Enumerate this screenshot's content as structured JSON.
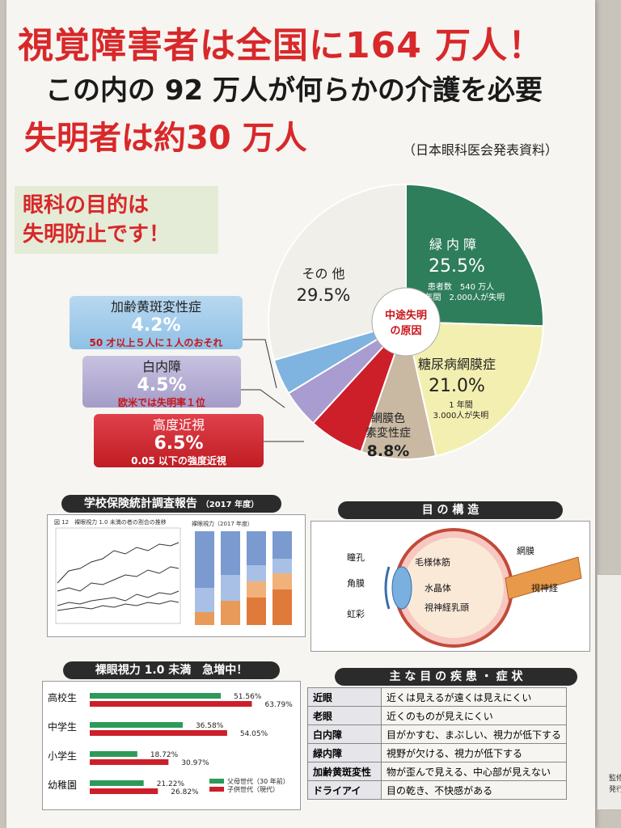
{
  "header": {
    "line1": "視覚障害者は全国に164 万人！",
    "line2": "この内の 92 万人が何らかの介護を必要",
    "line3": "失明者は約30 万人",
    "source": "（日本眼科医会発表資料）"
  },
  "purpose": {
    "line1": "眼科の目的は",
    "line2": "失明防止です！"
  },
  "pie_center": {
    "line1": "中途失明",
    "line2": "の原因"
  },
  "pie_labels": {
    "glaucoma": {
      "name": "緑 内 障",
      "value": "25.5%",
      "note1": "患者数　540 万人",
      "note2": "1 年間　2.000人が失明"
    },
    "diabetic": {
      "name": "糖尿病網膜症",
      "value": "21.0%",
      "note1": "1 年間",
      "note2": "3.000人が失明"
    },
    "retinitis": {
      "name1": "網膜色",
      "name2": "素変性症",
      "value": "8.8%"
    },
    "other": {
      "name": "その 他",
      "value": "29.5%"
    }
  },
  "callouts": {
    "amd": {
      "name": "加齢黄斑変性症",
      "value": "4.2%",
      "note": "50 才以上５人に１人のおそれ"
    },
    "cataract": {
      "name": "白内障",
      "value": "4.5%",
      "note": "欧米では失明率１位"
    },
    "myopia": {
      "name": "高度近視",
      "value": "6.5%",
      "note": "0.05 以下の強度近視"
    }
  },
  "chart_data": [
    {
      "type": "pie",
      "categories": [
        "緑内障",
        "糖尿病網膜症",
        "網膜色素変性症",
        "高度近視",
        "白内障",
        "加齢黄斑変性症",
        "その他"
      ],
      "values": [
        25.5,
        21.0,
        8.8,
        6.5,
        4.5,
        4.2,
        29.5
      ],
      "colors": [
        "#2e7d5b",
        "#f3efb0",
        "#c9b8a2",
        "#cc1f2a",
        "#a89cd0",
        "#7fb3e0",
        "#f0efea"
      ]
    },
    {
      "type": "bar",
      "title": "裸眼視力 1.0 未満　急増中！",
      "categories": [
        "高校生",
        "中学生",
        "小学生",
        "幼稚園"
      ],
      "series": [
        {
          "name": "父母世代（30 年前）",
          "values": [
            51.56,
            36.58,
            18.72,
            21.22
          ],
          "color": "#2e9a5a"
        },
        {
          "name": "子供世代（現代）",
          "values": [
            63.79,
            54.05,
            30.97,
            26.82
          ],
          "color": "#cc1f2a"
        }
      ],
      "value_labels": [
        [
          "51.56%",
          "36.58%",
          "18.72%",
          "21.22%"
        ],
        [
          "63.79%",
          "54.05%",
          "30.97%",
          "26.82%"
        ]
      ]
    }
  ],
  "survey": {
    "heading": "学校保険統計調査報告",
    "year": "（2017 年度）",
    "fig_title": "図 12　裸眼視力 1.0 未満の者の割合の推移",
    "stack_title": "裸眼視力（2017 年度）"
  },
  "eye": {
    "heading": "目 の 構 造",
    "labels": [
      "瞳孔",
      "角膜",
      "虹彩",
      "毛様体筋",
      "水晶体",
      "視神経乳頭",
      "網膜",
      "視神経"
    ]
  },
  "diseases": {
    "heading": "主 な 目 の 疾 患 ・ 症 状",
    "rows": [
      {
        "name": "近眼",
        "desc": "近くは見えるが遠くは見えにくい"
      },
      {
        "name": "老眼",
        "desc": "近くのものが見えにくい"
      },
      {
        "name": "白内障",
        "desc": "目がかすむ、まぶしい、視力が低下する"
      },
      {
        "name": "緑内障",
        "desc": "視野が欠ける、視力が低下する"
      },
      {
        "name": "加齢黄斑変性",
        "desc": "物が歪んで見える、中心部が見えない"
      },
      {
        "name": "ドライアイ",
        "desc": "目の乾き、不快感がある"
      }
    ]
  },
  "side_text": [
    "監修",
    "発行"
  ]
}
